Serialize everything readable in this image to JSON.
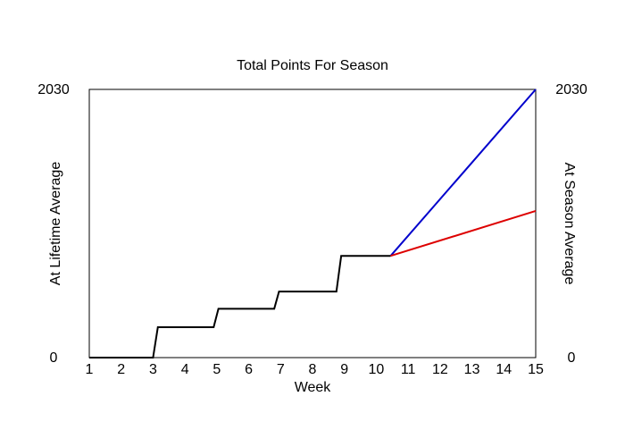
{
  "chart_data": {
    "type": "line",
    "title": "Total Points For Season",
    "xlabel": "Week",
    "ylabel_left": "At Lifetime Average",
    "ylabel_right": "At Season Average",
    "xlim": [
      1,
      15
    ],
    "ylim": [
      0,
      2030
    ],
    "x_ticks": [
      1,
      2,
      3,
      4,
      5,
      6,
      7,
      8,
      9,
      10,
      11,
      12,
      13,
      14,
      15
    ],
    "y_ticks_left": [
      0,
      2030
    ],
    "y_ticks_right": [
      0,
      2030
    ],
    "grid": false,
    "series": [
      {
        "color": "#000000",
        "points": [
          [
            1,
            0
          ],
          [
            3.0,
            0
          ],
          [
            3.15,
            230
          ],
          [
            4.9,
            230
          ],
          [
            5.05,
            370
          ],
          [
            6.8,
            370
          ],
          [
            6.95,
            500
          ],
          [
            8.75,
            500
          ],
          [
            8.9,
            770
          ],
          [
            10.45,
            770
          ]
        ]
      },
      {
        "color": "#0000cc",
        "points": [
          [
            10.45,
            770
          ],
          [
            15,
            2030
          ]
        ]
      },
      {
        "color": "#dd0000",
        "points": [
          [
            10.45,
            770
          ],
          [
            15,
            1110
          ]
        ]
      }
    ]
  },
  "colors": {
    "left_axis_label": "#0000cc",
    "right_axis_label": "#dd0000"
  }
}
